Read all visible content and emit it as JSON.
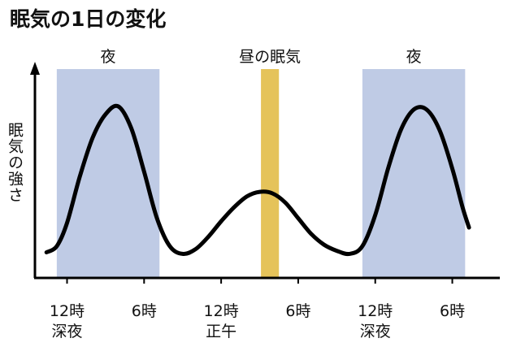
{
  "title": "眠気の1日の変化",
  "chart_data": {
    "type": "line",
    "title": "眠気の1日の変化",
    "xlabel": "",
    "ylabel": "眠気の強さ",
    "xlim": [
      -2.5,
      33.7
    ],
    "ylim": [
      0,
      100
    ],
    "grid": false,
    "legend": "none",
    "line_color": "#000000",
    "x_ticks": [
      {
        "x": 0,
        "lines": [
          "12時",
          "深夜"
        ]
      },
      {
        "x": 6,
        "lines": [
          "6時",
          ""
        ]
      },
      {
        "x": 12,
        "lines": [
          "12時",
          "正午"
        ]
      },
      {
        "x": 18,
        "lines": [
          "6時",
          ""
        ]
      },
      {
        "x": 24,
        "lines": [
          "12時",
          "深夜"
        ]
      },
      {
        "x": 30,
        "lines": [
          "6時",
          ""
        ]
      }
    ],
    "bands": [
      {
        "label": "夜",
        "x0": -0.8,
        "x1": 7.2,
        "color": "#bfcbe5"
      },
      {
        "label": "昼の眠気",
        "x0": 15.1,
        "x1": 16.5,
        "color": "#e5c35a"
      },
      {
        "label": "夜",
        "x0": 23.0,
        "x1": 31.0,
        "color": "#bfcbe5"
      }
    ],
    "series": [
      {
        "values": [
          [
            -1.6,
            6
          ],
          [
            -0.8,
            10
          ],
          [
            0,
            25
          ],
          [
            1,
            55
          ],
          [
            2,
            80
          ],
          [
            3,
            95
          ],
          [
            4,
            100
          ],
          [
            5,
            86
          ],
          [
            6,
            58
          ],
          [
            7,
            28
          ],
          [
            8,
            10
          ],
          [
            9,
            5
          ],
          [
            10,
            8
          ],
          [
            11,
            16
          ],
          [
            12,
            26
          ],
          [
            13,
            35
          ],
          [
            14,
            42
          ],
          [
            15,
            45
          ],
          [
            16,
            44
          ],
          [
            17,
            38
          ],
          [
            18,
            28
          ],
          [
            19,
            18
          ],
          [
            20,
            11
          ],
          [
            21,
            7
          ],
          [
            22,
            5
          ],
          [
            23,
            10
          ],
          [
            24,
            30
          ],
          [
            25,
            60
          ],
          [
            26,
            85
          ],
          [
            27,
            98
          ],
          [
            28,
            98
          ],
          [
            29,
            85
          ],
          [
            30,
            60
          ],
          [
            30.8,
            35
          ],
          [
            31.3,
            22
          ]
        ]
      }
    ]
  }
}
